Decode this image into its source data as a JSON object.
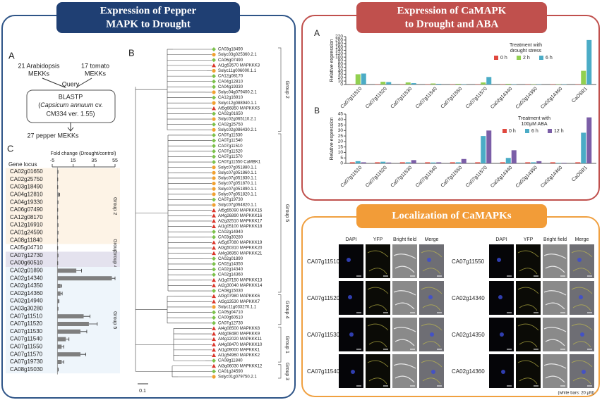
{
  "left_panel": {
    "title_lines": [
      "Expression of Pepper",
      "MAPK to Drought"
    ],
    "panel_a": {
      "label": "A",
      "source_1": [
        "21 Arabidopsis",
        "MEKKs"
      ],
      "source_2": [
        "17 tomato",
        "MEKKs"
      ],
      "query": "Query",
      "blastp": "BLASTP",
      "db_open": "(",
      "db_species": "Capsicum annuum",
      "db_rest": " cv.",
      "db_line3": "CM334 ver. 1.55)",
      "result": "27 pepper MEKKs"
    },
    "panel_b": {
      "label": "B",
      "leaves": [
        "CA03g18490",
        "Solyc03g025360.2.1",
        "CA06g07490",
        "At1g53570 MAPKKK3",
        "Solyc11g006000.1.1",
        "CA12g08170",
        "CA04g12810",
        "CA04g19330",
        "Solyc04g079400.2.1",
        "CA12g16910",
        "Solyc12g088940.1.1",
        "At5g66850 MAPKKK5",
        "CA02g01650",
        "Solyc02g065110.2.1",
        "CA02g25750",
        "Solyc02g086430.2.1",
        "CA07g11530",
        "CA07g11540",
        "CA07g11510",
        "CA07g11520",
        "CA07g11570",
        "CA07g11550 CaMBK1",
        "Solyc07g051880.1.1",
        "Solyc07g051860.1.1",
        "Solyc07g051830.1.1",
        "Solyc07g051870.1.1",
        "Solyc07g051890.1.1",
        "Solyc07g051820.1.1",
        "CA07g19730",
        "Solyc07g064820.1.1",
        "At5g55090 MAPKKK15",
        "At4g26890 MAPKKK16",
        "At2g32510 MAPKKK17",
        "At1g05100 MAPKKK18",
        "CA02g14940",
        "CA03g30280",
        "At5g67080 MAPKKK19",
        "At3g50310 MAPKKK20",
        "At4g36950 MAPKKK21",
        "CA02g01890",
        "CA02g14350",
        "CA02g14340",
        "CA02g14360",
        "At1g07150 MAPKKK13",
        "At2g30040 MAPKKK14",
        "CA08g15030",
        "At3g07980 MAPKKK6",
        "At3g13530 MAPKKK7",
        "Solyc11g033270.1.1",
        "CA05g04710",
        "CA00g60510",
        "CA07g12730",
        "At4g08500 MAPKKK8",
        "At4g08480 MAPKKK9",
        "At4g12020 MAPKKK11",
        "At4g08470 MAPKKK10",
        "At1g09000 MAPKKK1",
        "At1g54960 MAPKKK2",
        "CA08g11840",
        "At3g06030 MAPKKK12",
        "CA01g24590",
        "Solyc01g079750.2.1"
      ],
      "groups": [
        {
          "label": "Group 2",
          "count": 16
        },
        {
          "label": "Group 5",
          "count": 30
        },
        {
          "label": "Group 4",
          "count": 6
        },
        {
          "label": "Group 1",
          "count": 7
        },
        {
          "label": "Group 3",
          "count": 3
        }
      ],
      "scale_label": "0.1"
    }
  },
  "right_top": {
    "title_lines": [
      "Expression of CaMAPK",
      "to Drought and ABA"
    ]
  },
  "right_bottom": {
    "title": "Localization of CaMAPKs",
    "column_headers": [
      "DAPI",
      "YFP",
      "Bright field",
      "Merge"
    ],
    "left_genes": [
      "CA07g11510",
      "CA07g11520",
      "CA07g11530",
      "CA07g11540"
    ],
    "right_genes": [
      "CA07g11550",
      "CA02g14340",
      "CA02g14350",
      "CA02g14360"
    ],
    "scale_note": "(white bars: 20 μM)"
  },
  "chart_data": [
    {
      "type": "hbar",
      "panel_label": "C",
      "category_header": "Gene locus",
      "value_axis_label": "Fold change (Drought/control)",
      "categories": [
        "CA02g01650",
        "CA02g25750",
        "CA03g18490",
        "CA04g12810",
        "CA04g19330",
        "CA06g07490",
        "CA12g08170",
        "CA12g16910",
        "CA01g24590",
        "CA08g11840",
        "CA05g04710",
        "CA07g12730",
        "CA00g60510",
        "CA02g01890",
        "CA02g14340",
        "CA02g14350",
        "CA02g14360",
        "CA02g14940",
        "CA03g30280",
        "CA07g11510",
        "CA07g11520",
        "CA07g11530",
        "CA07g11540",
        "CA07g11550",
        "CA07g11570",
        "CA07g19730",
        "CA08g15030"
      ],
      "values": [
        0.3,
        0.2,
        0.2,
        1.5,
        0.3,
        0.2,
        0.2,
        0.3,
        0.3,
        0.2,
        0.2,
        0.3,
        0.2,
        18,
        52,
        3,
        3,
        1,
        0.3,
        25,
        30,
        22,
        8,
        4,
        22,
        4,
        0.5
      ],
      "errors": [
        0.2,
        0.1,
        0.1,
        0.5,
        0.2,
        0.1,
        0.1,
        0.2,
        0.2,
        0.1,
        0.1,
        0.2,
        0.1,
        5,
        3,
        1,
        1.5,
        0.5,
        0.2,
        6,
        8,
        6,
        3,
        2,
        5,
        2,
        0.3
      ],
      "color": "#7f7f7f",
      "xlim": [
        -5,
        55
      ],
      "xticks": [
        -5,
        15,
        35,
        55
      ],
      "groups": [
        {
          "label": "Group 2",
          "count": 10,
          "color": "#fdf3e6"
        },
        {
          "label": "Group 3",
          "count": 1,
          "color": "#ffffff"
        },
        {
          "label": "Group 4",
          "count": 2,
          "color": "#e4e2ee"
        },
        {
          "label": "Group 5",
          "count": 14,
          "color": "#eef5fb"
        }
      ]
    },
    {
      "type": "grouped-bar",
      "panel_label": "A",
      "y_label": "Relative expression",
      "legend_title": [
        "Treatment with",
        "drought stress"
      ],
      "categories": [
        "Ca07g11510",
        "Ca07g11520",
        "Ca07g11530",
        "Ca07g11540",
        "Ca07g11550",
        "Ca07g11570",
        "Ca02g14340",
        "Ca02g14350",
        "Ca02g14360",
        "CaOSR1"
      ],
      "series": [
        {
          "name": "0 h",
          "color": "#e0483e",
          "values": [
            1,
            1,
            1,
            1,
            1,
            1,
            1,
            1,
            1,
            1
          ]
        },
        {
          "name": "2 h",
          "color": "#92d050",
          "values": [
            30,
            8,
            6,
            3,
            2,
            6,
            2,
            1,
            1,
            40
          ]
        },
        {
          "name": "6 h",
          "color": "#4bacc6",
          "values": [
            32,
            7,
            4,
            2,
            1,
            22,
            1,
            1,
            1,
            200
          ]
        }
      ],
      "ylim": [
        0,
        220
      ],
      "yticks": [
        0,
        10,
        20,
        30,
        40,
        50,
        60,
        80,
        100,
        120,
        140,
        160,
        180,
        200,
        220
      ]
    },
    {
      "type": "grouped-bar",
      "panel_label": "B",
      "y_label": "Relative expression",
      "legend_title": [
        "Treatment with",
        "100μM ABA"
      ],
      "categories": [
        "Ca07g11510",
        "Ca07g11520",
        "Ca07g11530",
        "Ca07g11540",
        "Ca07g11550",
        "Ca07g11570",
        "Ca02g14340",
        "Ca02g14350",
        "Ca02g14360",
        "CaOSR1"
      ],
      "series": [
        {
          "name": "0 h",
          "color": "#e0483e",
          "values": [
            1,
            1,
            1,
            1,
            1,
            1,
            1,
            1,
            1,
            1
          ]
        },
        {
          "name": "6 h",
          "color": "#4bacc6",
          "values": [
            2,
            1.5,
            1,
            0.8,
            1,
            25,
            5,
            1,
            0.5,
            28
          ]
        },
        {
          "name": "12 h",
          "color": "#7b5ea7",
          "values": [
            1,
            0.8,
            3,
            1,
            4,
            30,
            12,
            2,
            0.5,
            42
          ]
        }
      ],
      "ylim": [
        0,
        45
      ],
      "yticks": [
        0,
        5,
        10,
        15,
        20,
        25,
        30,
        35,
        40,
        45
      ]
    }
  ]
}
